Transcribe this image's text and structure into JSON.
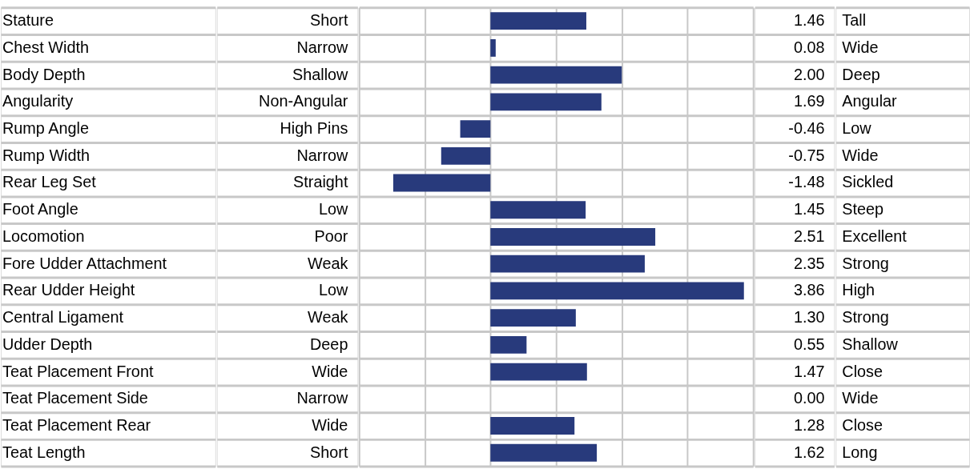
{
  "chart_data": {
    "type": "bar",
    "orientation": "horizontal",
    "categories": [
      "Stature",
      "Chest Width",
      "Body Depth",
      "Angularity",
      "Rump Angle",
      "Rump Width",
      "Rear Leg Set",
      "Foot Angle",
      "Locomotion",
      "Fore Udder Attachment",
      "Rear Udder Height",
      "Central Ligament",
      "Udder Depth",
      "Teat Placement Front",
      "Teat Placement Side",
      "Teat Placement Rear",
      "Teat Length"
    ],
    "series": [
      {
        "color": "#283a7c",
        "values": [
          1.46,
          0.08,
          2.0,
          1.69,
          -0.46,
          -0.75,
          -1.48,
          1.45,
          2.51,
          2.35,
          3.86,
          1.3,
          0.55,
          1.47,
          0.0,
          1.28,
          1.62
        ],
        "value_labels": [
          "1.46",
          "0.08",
          "2.00",
          "1.69",
          "-0.46",
          "-0.75",
          "-1.48",
          "1.45",
          "2.51",
          "2.35",
          "3.86",
          "1.30",
          "0.55",
          "1.47",
          "0.00",
          "1.28",
          "1.62"
        ]
      }
    ],
    "xlim": [
      -2,
      4
    ],
    "xticks": [
      {
        "value": -2,
        "label": null
      },
      {
        "value": -1,
        "label": null
      },
      {
        "value": 0,
        "label": null
      },
      {
        "value": 1,
        "label": null
      },
      {
        "value": 2,
        "label": null
      },
      {
        "value": 3,
        "label": null
      },
      {
        "value": 4,
        "label": null
      }
    ],
    "tick_labels": false,
    "grid": true,
    "annotations": [
      "Short",
      "Tall",
      "Narrow",
      "Wide",
      "Shallow",
      "Deep",
      "Non-Angular",
      "Angular",
      "High Pins",
      "Low",
      "Narrow",
      "Wide",
      "Straight",
      "Sickled",
      "Low",
      "Steep",
      "Poor",
      "Excellent",
      "Weak",
      "Strong",
      "Low",
      "High",
      "Weak",
      "Strong",
      "Deep",
      "Shallow",
      "Wide",
      "Close",
      "Narrow",
      "Wide",
      "Wide",
      "Close",
      "Short",
      "Long"
    ]
  }
}
